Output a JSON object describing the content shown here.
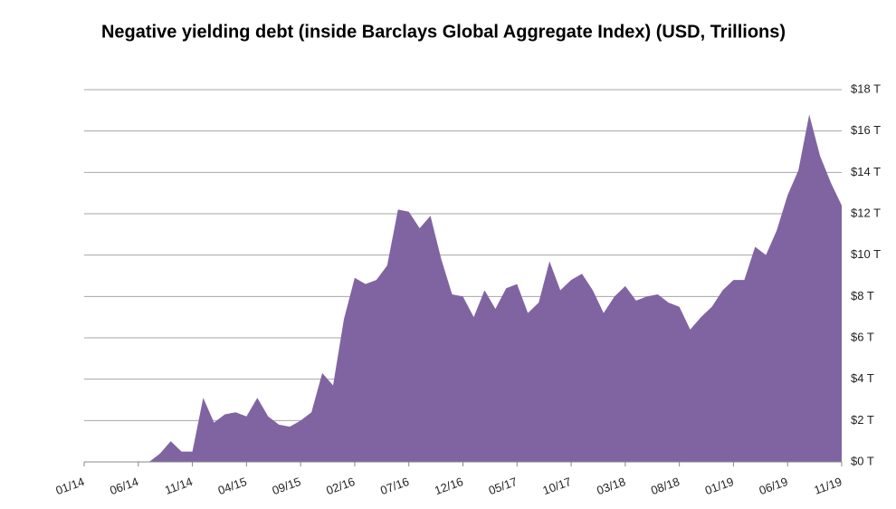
{
  "chart_data": {
    "type": "area",
    "title": "Negative yielding debt (inside Barclays Global Aggregate Index) (USD, Trillions)",
    "categories": [
      "01/14",
      null,
      null,
      null,
      null,
      "06/14",
      null,
      null,
      null,
      null,
      "11/14",
      null,
      null,
      null,
      null,
      "04/15",
      null,
      null,
      null,
      null,
      "09/15",
      null,
      null,
      null,
      null,
      "02/16",
      null,
      null,
      null,
      null,
      "07/16",
      null,
      null,
      null,
      null,
      "12/16",
      null,
      null,
      null,
      null,
      "05/17",
      null,
      null,
      null,
      null,
      "10/17",
      null,
      null,
      null,
      null,
      "03/18",
      null,
      null,
      null,
      null,
      "08/18",
      null,
      null,
      null,
      null,
      "01/19",
      null,
      null,
      null,
      null,
      "06/19",
      null,
      null,
      null,
      null,
      "11/19"
    ],
    "values": [
      0,
      0,
      0,
      0,
      0,
      0,
      0,
      0.4,
      1.0,
      0.5,
      0.5,
      3.1,
      1.9,
      2.3,
      2.4,
      2.2,
      3.1,
      2.2,
      1.8,
      1.7,
      2.0,
      2.4,
      4.3,
      3.7,
      6.9,
      8.9,
      8.6,
      8.8,
      9.5,
      12.2,
      12.1,
      11.3,
      11.9,
      9.8,
      8.1,
      8.0,
      7.0,
      8.3,
      7.4,
      8.4,
      8.6,
      7.2,
      7.7,
      9.7,
      8.3,
      8.8,
      9.1,
      8.3,
      7.2,
      8.0,
      8.5,
      7.8,
      8.0,
      8.1,
      7.7,
      7.5,
      6.4,
      7.0,
      7.5,
      8.3,
      8.8,
      8.8,
      10.4,
      10.0,
      11.2,
      12.9,
      14.1,
      16.8,
      14.8,
      13.5,
      12.4
    ],
    "color": "#8064a2",
    "ylim": [
      0,
      18
    ],
    "yticks": [
      {
        "value": 0,
        "label": "$0 T"
      },
      {
        "value": 2,
        "label": "$2 T"
      },
      {
        "value": 4,
        "label": "$4 T"
      },
      {
        "value": 6,
        "label": "$6 T"
      },
      {
        "value": 8,
        "label": "$8 T"
      },
      {
        "value": 10,
        "label": "$10 T"
      },
      {
        "value": 12,
        "label": "$12 T"
      },
      {
        "value": 14,
        "label": "$14 T"
      },
      {
        "value": 16,
        "label": "$16 T"
      },
      {
        "value": 18,
        "label": "$18 T"
      }
    ],
    "grid": true
  }
}
